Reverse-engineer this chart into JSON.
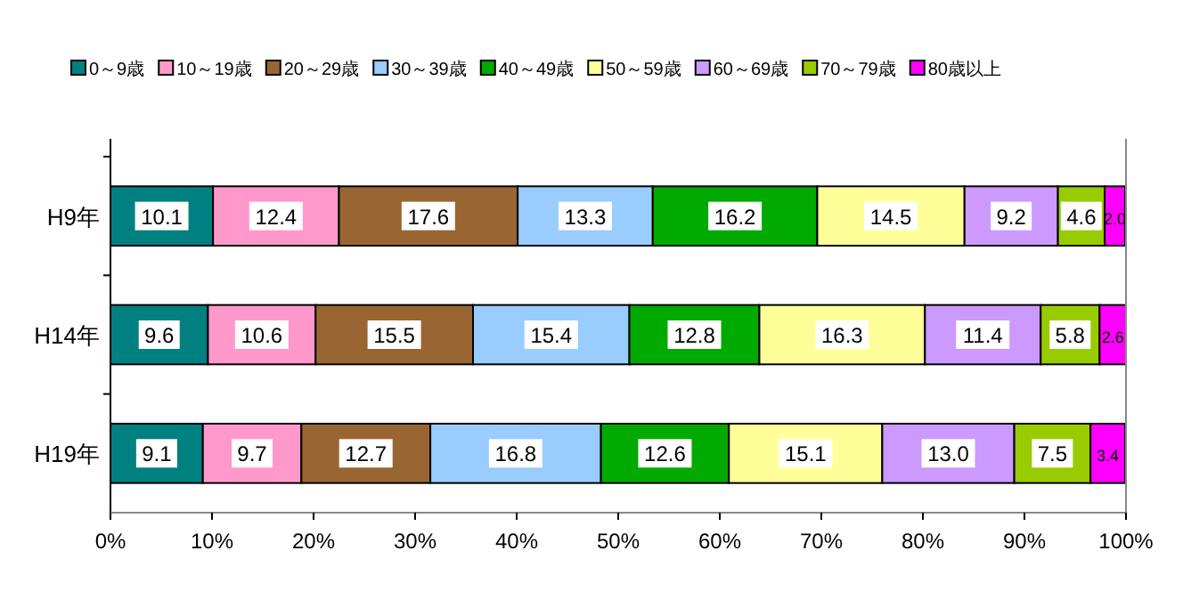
{
  "chart_data": {
    "type": "bar",
    "orientation": "horizontal",
    "stacked": true,
    "categories": [
      "H9年",
      "H14年",
      "H19年"
    ],
    "series": [
      {
        "name": "0～9歳",
        "color": "#008080",
        "values": [
          10.1,
          9.6,
          9.1
        ]
      },
      {
        "name": "10～19歳",
        "color": "#ff99cc",
        "values": [
          12.4,
          10.6,
          9.7
        ]
      },
      {
        "name": "20～29歳",
        "color": "#996633",
        "values": [
          17.6,
          15.5,
          12.7
        ]
      },
      {
        "name": "30～39歳",
        "color": "#99ccff",
        "values": [
          13.3,
          15.4,
          16.8
        ]
      },
      {
        "name": "40～49歳",
        "color": "#00aa00",
        "values": [
          16.2,
          12.8,
          12.6
        ]
      },
      {
        "name": "50～59歳",
        "color": "#ffff99",
        "values": [
          14.5,
          16.3,
          15.1
        ]
      },
      {
        "name": "60～69歳",
        "color": "#cc99ff",
        "values": [
          9.2,
          11.4,
          13.0
        ],
        "value_labels": [
          "9.2",
          "11.4",
          "13.0"
        ]
      },
      {
        "name": "70～79歳",
        "color": "#99cc00",
        "values": [
          4.6,
          5.8,
          7.5
        ]
      },
      {
        "name": "80歳以上",
        "color": "#ff00ff",
        "values": [
          2.0,
          2.6,
          3.4
        ],
        "value_labels": [
          "2.0",
          "2.6",
          "3.4"
        ]
      }
    ],
    "xlim": [
      0,
      100
    ],
    "xticks": [
      {
        "value": 0,
        "label": "0%"
      },
      {
        "value": 10,
        "label": "10%"
      },
      {
        "value": 20,
        "label": "20%"
      },
      {
        "value": 30,
        "label": "30%"
      },
      {
        "value": 40,
        "label": "40%"
      },
      {
        "value": 50,
        "label": "50%"
      },
      {
        "value": 60,
        "label": "60%"
      },
      {
        "value": 70,
        "label": "70%"
      },
      {
        "value": 80,
        "label": "80%"
      },
      {
        "value": 90,
        "label": "90%"
      },
      {
        "value": 100,
        "label": "100%"
      }
    ],
    "data_labels": true,
    "legend": "top",
    "grid": false
  }
}
